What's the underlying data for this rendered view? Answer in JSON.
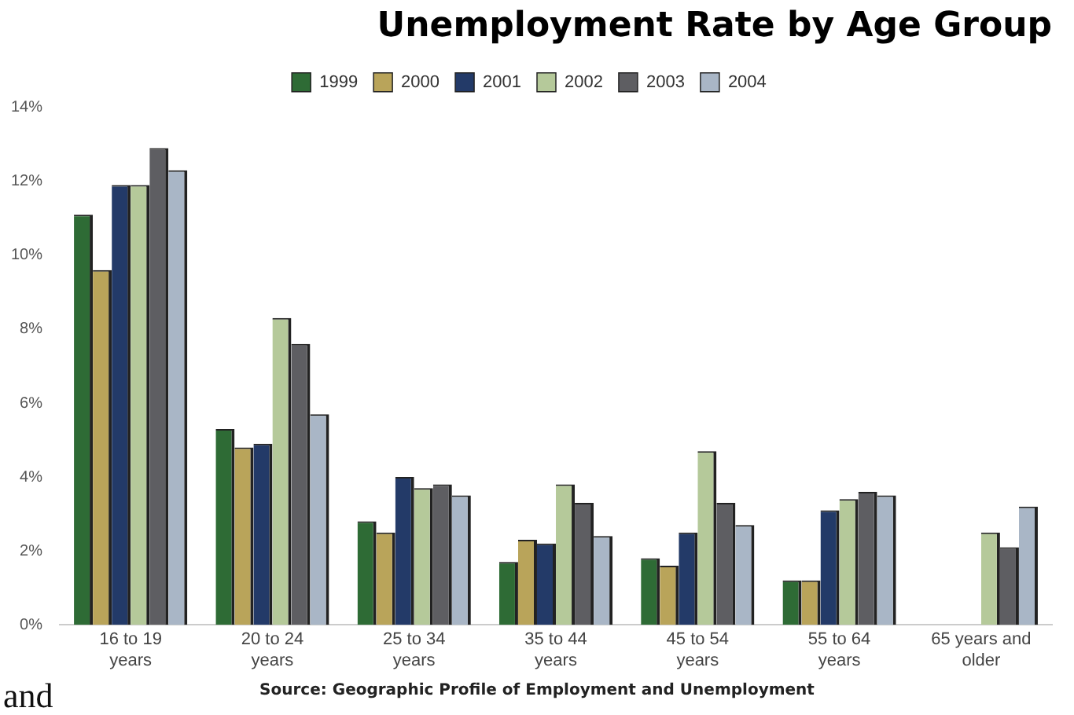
{
  "chart_data": {
    "type": "bar",
    "title": "Unemployment Rate by Age Group",
    "categories": [
      "16 to 19 years",
      "20 to 24 years",
      "25 to 34 years",
      "35 to 44 years",
      "45 to 54 years",
      "55 to 64 years",
      "65 years and older"
    ],
    "series": [
      {
        "name": "1999",
        "color": "#2e6b35",
        "values": [
          11.1,
          5.3,
          2.8,
          1.7,
          1.8,
          1.2,
          null
        ]
      },
      {
        "name": "2000",
        "color": "#b9a45a",
        "values": [
          9.6,
          4.8,
          2.5,
          2.3,
          1.6,
          1.2,
          null
        ]
      },
      {
        "name": "2001",
        "color": "#233a68",
        "values": [
          11.9,
          4.9,
          4.0,
          2.2,
          2.5,
          3.1,
          null
        ]
      },
      {
        "name": "2002",
        "color": "#b5c99a",
        "values": [
          11.9,
          8.3,
          3.7,
          3.8,
          4.7,
          3.4,
          2.5
        ]
      },
      {
        "name": "2003",
        "color": "#5e5e62",
        "values": [
          12.9,
          7.6,
          3.8,
          3.3,
          3.3,
          3.6,
          2.1
        ]
      },
      {
        "name": "2004",
        "color": "#a9b6c6",
        "values": [
          12.3,
          5.7,
          3.5,
          2.4,
          2.7,
          3.5,
          3.2
        ]
      }
    ],
    "ylim": [
      0,
      14
    ],
    "yticks": [
      {
        "value": 0,
        "label": "0%"
      },
      {
        "value": 2,
        "label": "2%"
      },
      {
        "value": 4,
        "label": "4%"
      },
      {
        "value": 6,
        "label": "6%"
      },
      {
        "value": 8,
        "label": "8%"
      },
      {
        "value": 10,
        "label": "10%"
      },
      {
        "value": 12,
        "label": "12%"
      },
      {
        "value": 14,
        "label": "14%"
      }
    ],
    "legend": "top",
    "annotations": [
      "Source: Geographic Profile of Employment and Unemployment",
      "and"
    ]
  }
}
